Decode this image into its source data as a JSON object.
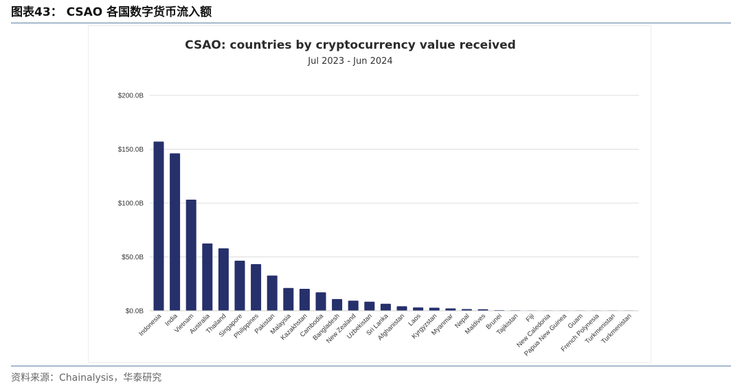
{
  "header": {
    "figure_label": "图表43：",
    "figure_title": "CSAO 各国数字货币流入额"
  },
  "source": "资料来源：Chainalysis，华泰研究",
  "chart_data": {
    "type": "bar",
    "title": "CSAO: countries by cryptocurrency value received",
    "subtitle": "Jul 2023 - Jun 2024",
    "xlabel": "",
    "ylabel": "",
    "ylim": [
      0,
      200
    ],
    "y_ticks": [
      0,
      50,
      100,
      150,
      200
    ],
    "y_tick_labels": [
      "$0.0B",
      "$50.0B",
      "$100.0B",
      "$150.0B",
      "$200.0B"
    ],
    "grid": true,
    "bar_color": "#26306b",
    "categories": [
      "Indonesia",
      "India",
      "Vietnam",
      "Australia",
      "Thailand",
      "Singapore",
      "Philippines",
      "Pakistan",
      "Malaysia",
      "Kazakhstan",
      "Cambodia",
      "Bangladesh",
      "New Zealand",
      "Uzbekistan",
      "Sri Lanka",
      "Afghanistan",
      "Laos",
      "Kyrgyzstan",
      "Myanmar",
      "Nepal",
      "Maldives",
      "Brunei",
      "Tajikistan",
      "Fiji",
      "New Caledonia",
      "Papua New Guinea",
      "Guam",
      "French Polynesia",
      "Turkmenistan",
      "Turkmenistan"
    ],
    "values": [
      157.1,
      146.2,
      103.2,
      62.5,
      58.0,
      46.5,
      43.3,
      32.7,
      21.2,
      20.4,
      17.1,
      10.9,
      9.4,
      8.4,
      6.5,
      4.2,
      3.1,
      2.9,
      2.2,
      1.6,
      1.4,
      0.6,
      0.5,
      0.2,
      0.1,
      0.1,
      0.1,
      0.1,
      0.05,
      0.05
    ]
  }
}
